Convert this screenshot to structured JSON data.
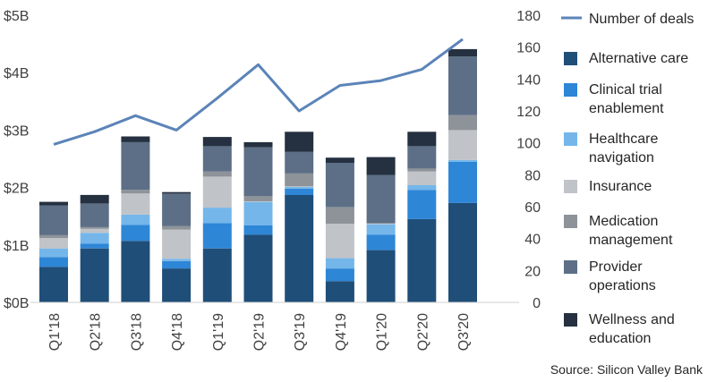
{
  "chart_data": {
    "type": "bar",
    "stacked": true,
    "categories": [
      "Q1'18",
      "Q2'18",
      "Q3'18",
      "Q4'18",
      "Q1'19",
      "Q2'19",
      "Q3'19",
      "Q4'19",
      "Q1'20",
      "Q2'20",
      "Q3'20"
    ],
    "left_axis": {
      "ticks": [
        "$0B",
        "$1B",
        "$2B",
        "$3B",
        "$4B",
        "$5B"
      ],
      "ylim": [
        0,
        5
      ]
    },
    "right_axis": {
      "ticks": [
        "0",
        "20",
        "40",
        "60",
        "80",
        "100",
        "120",
        "140",
        "160",
        "180"
      ],
      "ylim": [
        0,
        180
      ]
    },
    "series": [
      {
        "name": "Alternative care",
        "color": "#1f4e79",
        "values": [
          0.62,
          0.94,
          1.07,
          0.59,
          0.94,
          1.18,
          1.87,
          0.37,
          0.91,
          1.45,
          1.73
        ]
      },
      {
        "name": "Clinical trial enablement",
        "color": "#2e86d6",
        "values": [
          0.17,
          0.08,
          0.28,
          0.13,
          0.44,
          0.16,
          0.11,
          0.22,
          0.27,
          0.51,
          0.72
        ]
      },
      {
        "name": "Healthcare navigation",
        "color": "#74b6ea",
        "values": [
          0.15,
          0.19,
          0.18,
          0.04,
          0.27,
          0.41,
          0.03,
          0.18,
          0.18,
          0.08,
          0.03
        ]
      },
      {
        "name": "Insurance",
        "color": "#c0c3c7",
        "values": [
          0.18,
          0.07,
          0.37,
          0.51,
          0.54,
          0.01,
          0.01,
          0.6,
          0.01,
          0.24,
          0.52
        ]
      },
      {
        "name": "Medication management",
        "color": "#8d9399",
        "values": [
          0.05,
          0.03,
          0.06,
          0.06,
          0.09,
          0.09,
          0.23,
          0.29,
          0.01,
          0.05,
          0.26
        ]
      },
      {
        "name": "Provider operations",
        "color": "#5c6f86",
        "values": [
          0.52,
          0.41,
          0.83,
          0.56,
          0.44,
          0.85,
          0.37,
          0.77,
          0.84,
          0.39,
          1.02
        ]
      },
      {
        "name": "Wellness and education",
        "color": "#253140",
        "values": [
          0.06,
          0.15,
          0.1,
          0.03,
          0.16,
          0.09,
          0.35,
          0.09,
          0.31,
          0.25,
          0.13
        ]
      }
    ],
    "line": {
      "name": "Number of deals",
      "color": "#5b84b8",
      "axis": "right",
      "values": [
        99,
        107,
        117,
        108,
        128,
        149,
        120,
        136,
        139,
        146,
        165
      ]
    },
    "legend_position": "right",
    "grid": false
  },
  "source": "Source: Silicon Valley Bank"
}
